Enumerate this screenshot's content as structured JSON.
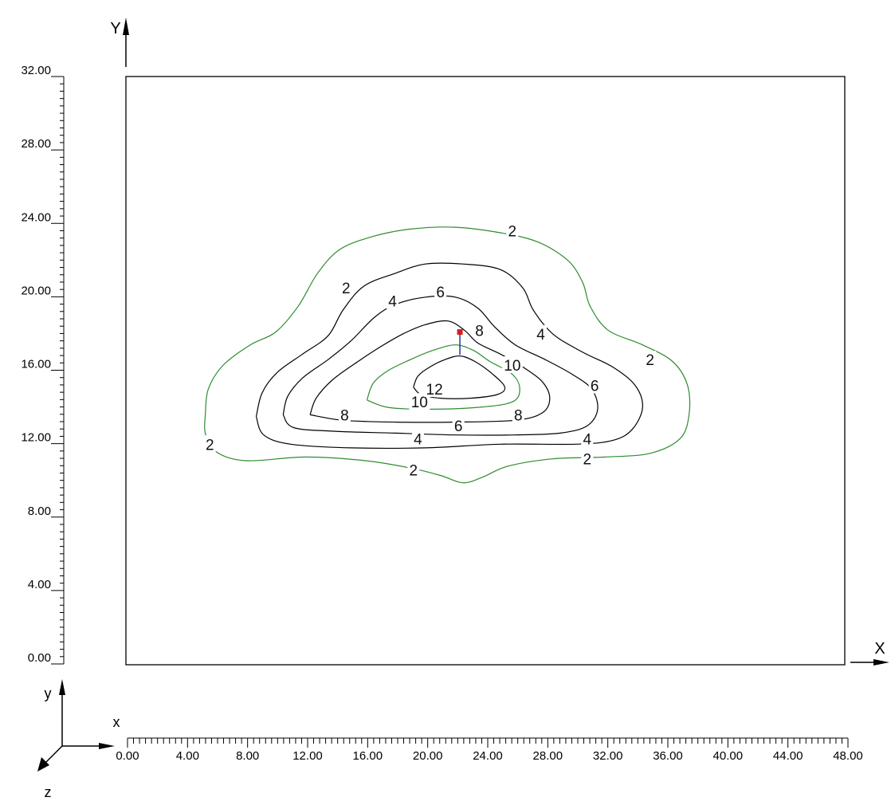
{
  "axes": {
    "y_axis_label": "Y",
    "x_axis_label": "X"
  },
  "triad": {
    "y": "y",
    "x": "x",
    "z": "z"
  },
  "colors": {
    "frame": "#000000",
    "contour_dark": "#000000",
    "contour_green": "#2e8b2e",
    "marker": "#d62020",
    "marker_stem": "#1f3a93"
  },
  "chart_data": {
    "type": "contour",
    "title": "",
    "xlabel": "X",
    "ylabel": "Y",
    "xlim": [
      0,
      48
    ],
    "ylim": [
      0,
      32
    ],
    "grid": false,
    "x_ticks": [
      "0.00",
      "4.00",
      "8.00",
      "12.00",
      "16.00",
      "20.00",
      "24.00",
      "28.00",
      "32.00",
      "36.00",
      "40.00",
      "44.00",
      "48.00"
    ],
    "y_ticks": [
      "0.00",
      "4.00",
      "8.00",
      "12.00",
      "16.00",
      "20.00",
      "24.00",
      "28.00",
      "32.00"
    ],
    "marker": {
      "x": 22.3,
      "y": 18.1
    },
    "marker_stem_end": {
      "x": 22.3,
      "y": 17.3
    },
    "contours": [
      {
        "level": 2,
        "color": "green",
        "points": [
          [
            5.3,
            13.6
          ],
          [
            5.5,
            15.0
          ],
          [
            6.5,
            16.3
          ],
          [
            8.3,
            17.4
          ],
          [
            10.0,
            18.1
          ],
          [
            11.5,
            19.5
          ],
          [
            12.8,
            21.3
          ],
          [
            14.3,
            22.6
          ],
          [
            16.5,
            23.3
          ],
          [
            19.0,
            23.7
          ],
          [
            22.0,
            23.8
          ],
          [
            25.0,
            23.5
          ],
          [
            27.5,
            23.0
          ],
          [
            29.5,
            22.0
          ],
          [
            30.5,
            20.8
          ],
          [
            31.0,
            19.5
          ],
          [
            32.2,
            18.2
          ],
          [
            34.5,
            17.4
          ],
          [
            36.5,
            16.5
          ],
          [
            37.5,
            15.2
          ],
          [
            37.6,
            13.6
          ],
          [
            37.0,
            12.3
          ],
          [
            35.0,
            11.5
          ],
          [
            32.0,
            11.3
          ],
          [
            28.5,
            11.2
          ],
          [
            25.5,
            10.8
          ],
          [
            23.8,
            10.2
          ],
          [
            22.5,
            9.9
          ],
          [
            21.0,
            10.3
          ],
          [
            19.0,
            10.7
          ],
          [
            16.0,
            11.1
          ],
          [
            12.0,
            11.3
          ],
          [
            8.0,
            11.1
          ],
          [
            6.0,
            11.6
          ],
          [
            5.3,
            12.6
          ],
          [
            5.3,
            13.6
          ]
        ]
      },
      {
        "level": 4,
        "color": "dark",
        "points": [
          [
            8.7,
            13.5
          ],
          [
            9.1,
            14.8
          ],
          [
            10.1,
            15.9
          ],
          [
            11.8,
            16.9
          ],
          [
            13.5,
            17.9
          ],
          [
            14.5,
            19.3
          ],
          [
            15.9,
            20.6
          ],
          [
            18.0,
            21.3
          ],
          [
            20.0,
            21.8
          ],
          [
            22.5,
            21.8
          ],
          [
            25.0,
            21.5
          ],
          [
            26.5,
            20.5
          ],
          [
            27.2,
            19.3
          ],
          [
            28.5,
            18.0
          ],
          [
            30.5,
            17.0
          ],
          [
            32.5,
            16.2
          ],
          [
            34.0,
            15.2
          ],
          [
            34.5,
            14.0
          ],
          [
            33.8,
            12.8
          ],
          [
            32.5,
            12.2
          ],
          [
            30.0,
            12.0
          ],
          [
            25.0,
            12.0
          ],
          [
            20.0,
            11.8
          ],
          [
            15.0,
            11.8
          ],
          [
            11.0,
            12.0
          ],
          [
            9.2,
            12.5
          ],
          [
            8.7,
            13.5
          ]
        ]
      },
      {
        "level": 6,
        "color": "dark",
        "points": [
          [
            10.5,
            13.6
          ],
          [
            10.8,
            14.6
          ],
          [
            11.8,
            15.6
          ],
          [
            13.5,
            16.6
          ],
          [
            15.0,
            17.6
          ],
          [
            16.6,
            18.9
          ],
          [
            18.0,
            19.6
          ],
          [
            20.0,
            20.0
          ],
          [
            22.0,
            20.0
          ],
          [
            23.5,
            19.4
          ],
          [
            24.6,
            18.4
          ],
          [
            26.0,
            17.4
          ],
          [
            28.0,
            16.6
          ],
          [
            29.8,
            15.8
          ],
          [
            31.1,
            15.0
          ],
          [
            31.5,
            13.9
          ],
          [
            30.8,
            13.0
          ],
          [
            29.0,
            12.6
          ],
          [
            26.0,
            12.5
          ],
          [
            22.0,
            12.5
          ],
          [
            18.0,
            12.6
          ],
          [
            14.0,
            12.7
          ],
          [
            11.2,
            12.9
          ],
          [
            10.5,
            13.6
          ]
        ]
      },
      {
        "level": 8,
        "color": "dark",
        "points": [
          [
            12.3,
            13.6
          ],
          [
            12.7,
            14.5
          ],
          [
            13.8,
            15.5
          ],
          [
            15.5,
            16.5
          ],
          [
            17.0,
            17.3
          ],
          [
            18.5,
            18.0
          ],
          [
            20.0,
            18.5
          ],
          [
            21.5,
            18.7
          ],
          [
            22.6,
            18.2
          ],
          [
            23.5,
            17.5
          ],
          [
            25.0,
            16.9
          ],
          [
            26.5,
            16.2
          ],
          [
            27.8,
            15.4
          ],
          [
            28.3,
            14.5
          ],
          [
            27.8,
            13.7
          ],
          [
            26.0,
            13.3
          ],
          [
            22.0,
            13.2
          ],
          [
            18.0,
            13.2
          ],
          [
            14.5,
            13.3
          ],
          [
            12.3,
            13.6
          ]
        ]
      },
      {
        "level": 10,
        "color": "green",
        "points": [
          [
            16.1,
            14.4
          ],
          [
            16.5,
            15.3
          ],
          [
            17.5,
            16.0
          ],
          [
            19.0,
            16.6
          ],
          [
            20.5,
            17.1
          ],
          [
            22.0,
            17.4
          ],
          [
            23.2,
            17.1
          ],
          [
            24.3,
            16.5
          ],
          [
            25.8,
            15.8
          ],
          [
            26.3,
            15.0
          ],
          [
            25.8,
            14.3
          ],
          [
            23.5,
            14.0
          ],
          [
            20.0,
            13.9
          ],
          [
            17.5,
            14.0
          ],
          [
            16.1,
            14.4
          ]
        ]
      },
      {
        "level": 12,
        "color": "dark",
        "points": [
          [
            19.2,
            15.1
          ],
          [
            19.5,
            15.7
          ],
          [
            20.3,
            16.2
          ],
          [
            21.3,
            16.6
          ],
          [
            22.3,
            16.8
          ],
          [
            23.3,
            16.5
          ],
          [
            24.5,
            15.8
          ],
          [
            25.3,
            15.1
          ],
          [
            24.8,
            14.7
          ],
          [
            23.0,
            14.5
          ],
          [
            21.0,
            14.5
          ],
          [
            19.7,
            14.7
          ],
          [
            19.2,
            15.1
          ]
        ]
      }
    ],
    "contour_labels": [
      {
        "text": "2",
        "x": 25.8,
        "y": 23.6
      },
      {
        "text": "2",
        "x": 14.7,
        "y": 20.5
      },
      {
        "text": "2",
        "x": 35.0,
        "y": 16.6
      },
      {
        "text": "2",
        "x": 5.6,
        "y": 12.0
      },
      {
        "text": "2",
        "x": 19.2,
        "y": 10.6
      },
      {
        "text": "2",
        "x": 30.8,
        "y": 11.2
      },
      {
        "text": "4",
        "x": 17.8,
        "y": 19.8
      },
      {
        "text": "4",
        "x": 27.7,
        "y": 18.0
      },
      {
        "text": "4",
        "x": 19.5,
        "y": 12.3
      },
      {
        "text": "4",
        "x": 30.8,
        "y": 12.3
      },
      {
        "text": "6",
        "x": 21.0,
        "y": 20.3
      },
      {
        "text": "6",
        "x": 31.3,
        "y": 15.2
      },
      {
        "text": "6",
        "x": 22.2,
        "y": 13.0
      },
      {
        "text": "8",
        "x": 23.6,
        "y": 18.2
      },
      {
        "text": "8",
        "x": 14.6,
        "y": 13.6
      },
      {
        "text": "8",
        "x": 26.2,
        "y": 13.6
      },
      {
        "text": "10",
        "x": 25.8,
        "y": 16.3
      },
      {
        "text": "10",
        "x": 19.6,
        "y": 14.3
      },
      {
        "text": "12",
        "x": 20.6,
        "y": 15.0
      }
    ]
  }
}
